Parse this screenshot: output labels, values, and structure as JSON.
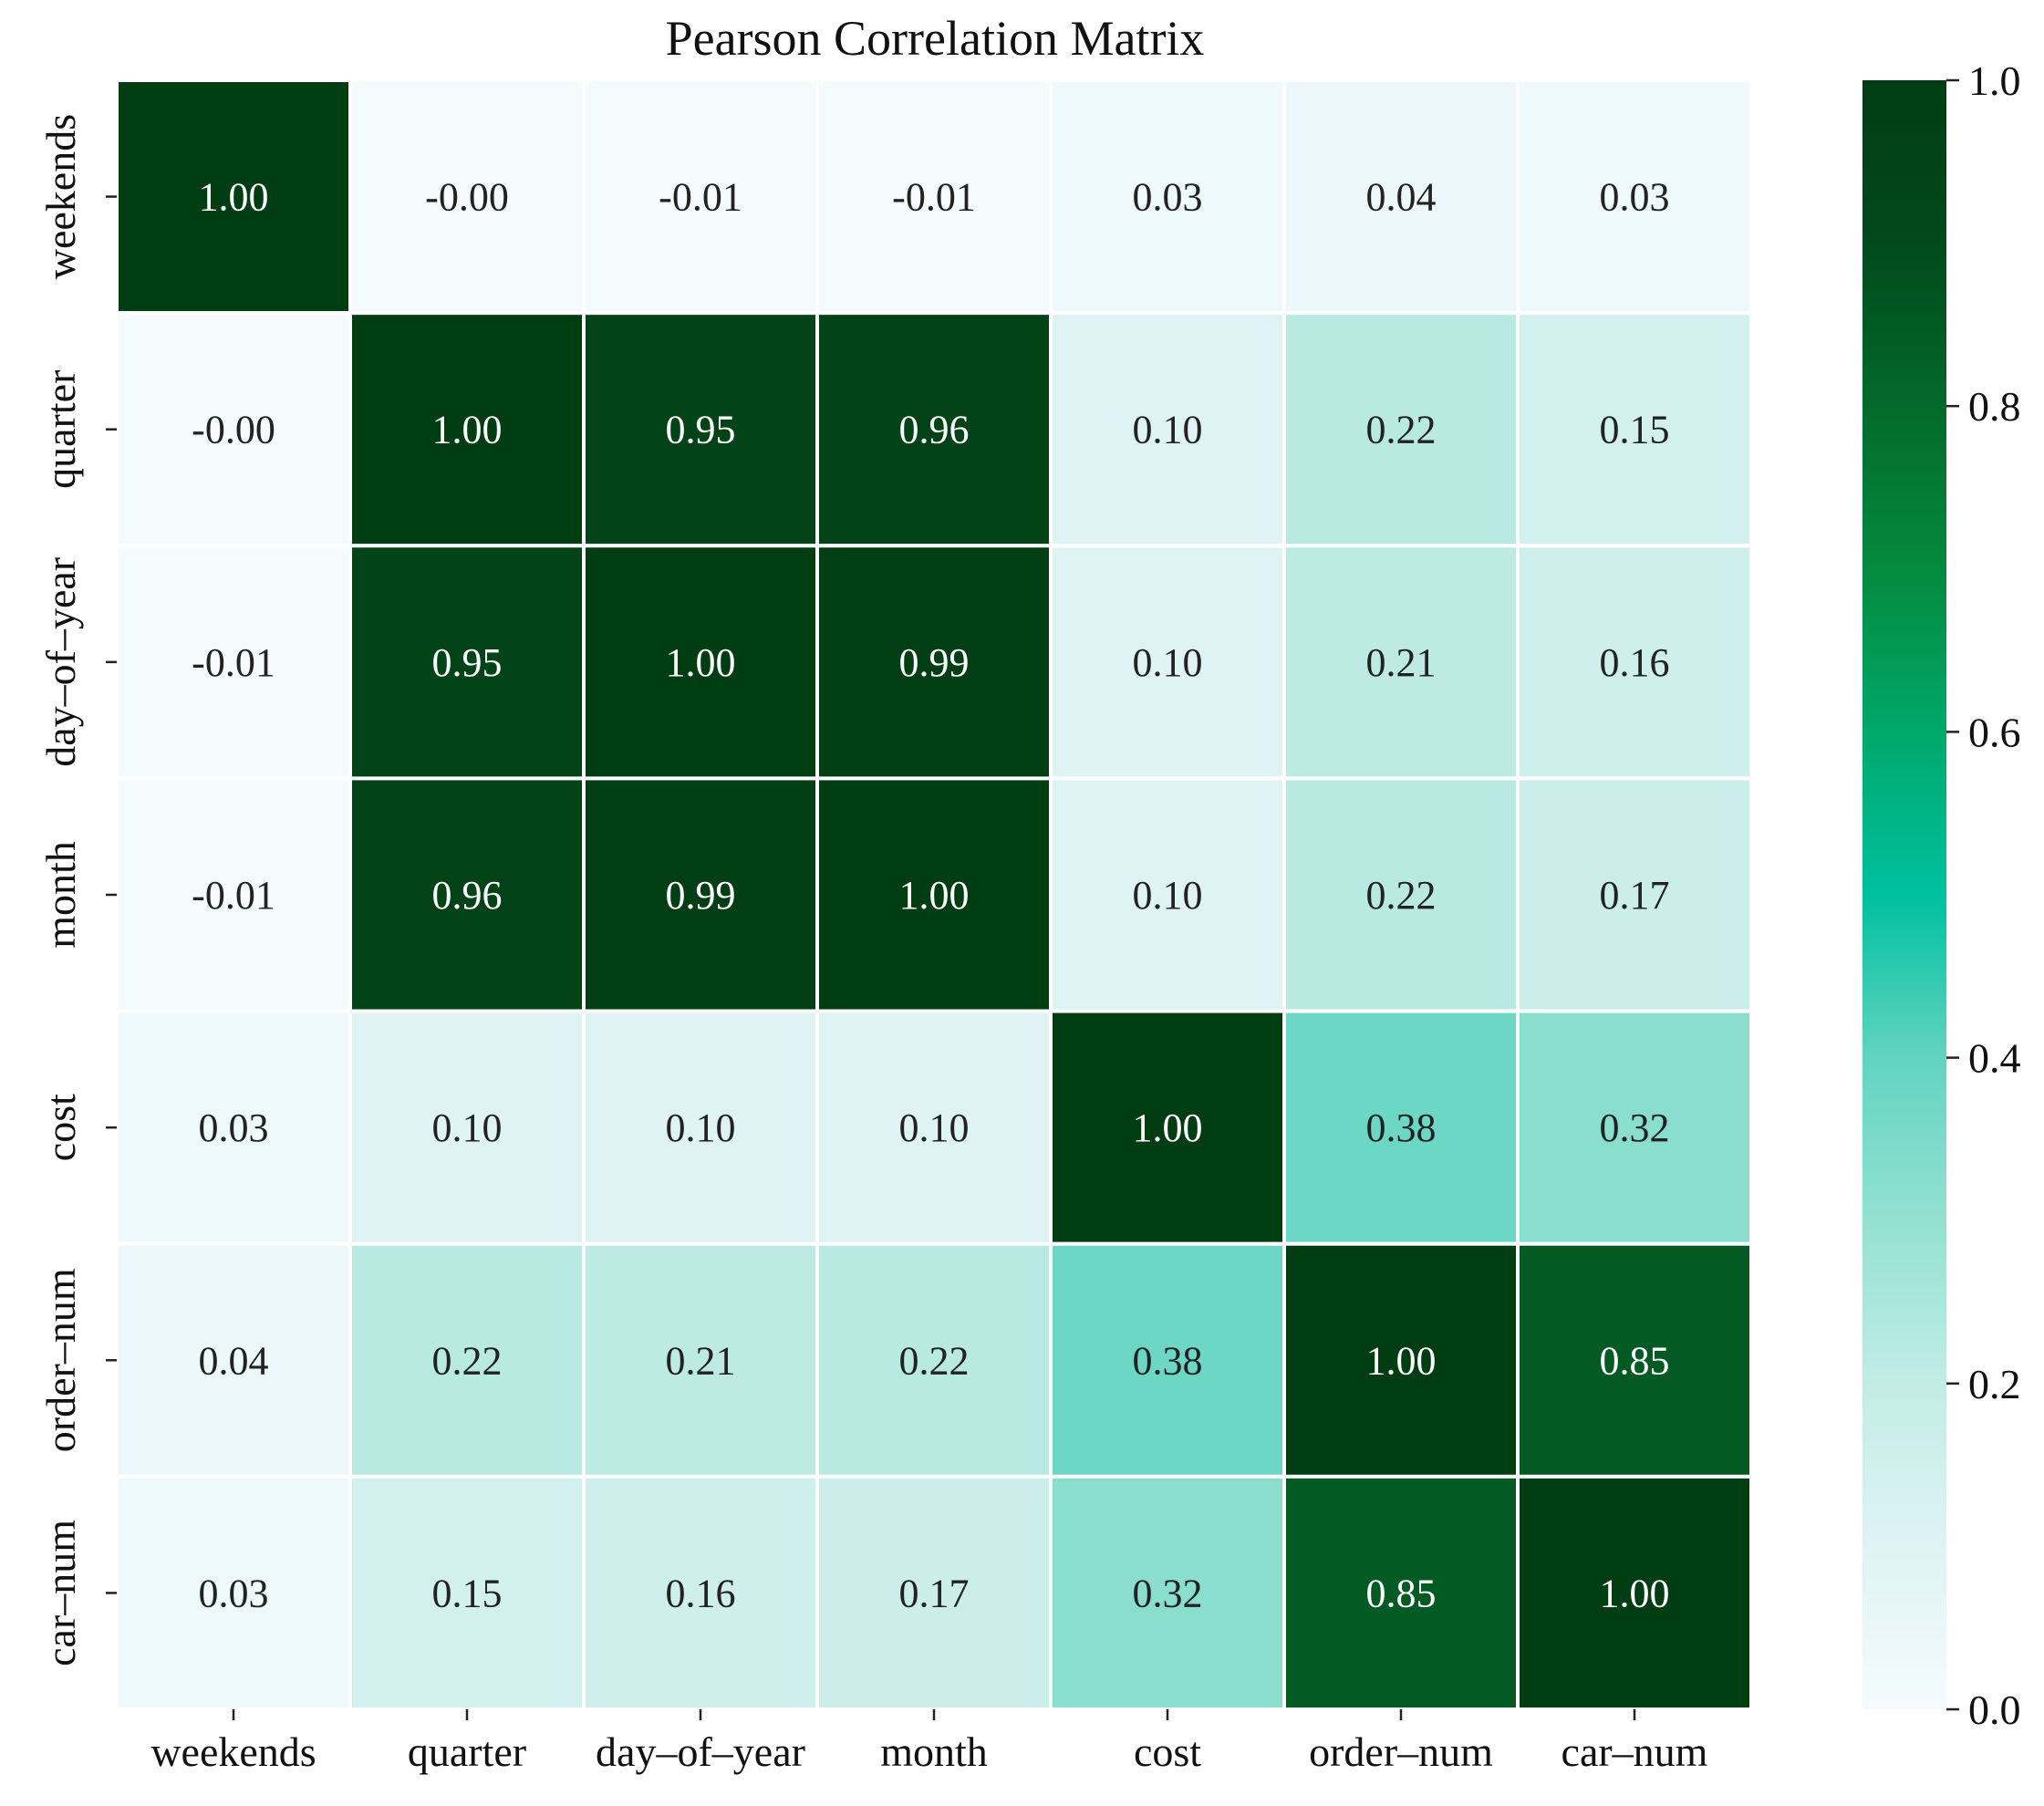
{
  "chart_data": {
    "type": "heatmap",
    "title": "Pearson Correlation Matrix",
    "x_labels": [
      "weekends",
      "quarter",
      "day–of–year",
      "month",
      "cost",
      "order–num",
      "car–num"
    ],
    "y_labels": [
      "weekends",
      "quarter",
      "day–of–year",
      "month",
      "cost",
      "order–num",
      "car–num"
    ],
    "values": [
      [
        1.0,
        -0.0,
        -0.01,
        -0.01,
        0.03,
        0.04,
        0.03
      ],
      [
        -0.0,
        1.0,
        0.95,
        0.96,
        0.1,
        0.22,
        0.15
      ],
      [
        -0.01,
        0.95,
        1.0,
        0.99,
        0.1,
        0.21,
        0.16
      ],
      [
        -0.01,
        0.96,
        0.99,
        1.0,
        0.1,
        0.22,
        0.17
      ],
      [
        0.03,
        0.1,
        0.1,
        0.1,
        1.0,
        0.38,
        0.32
      ],
      [
        0.04,
        0.22,
        0.21,
        0.22,
        0.38,
        1.0,
        0.85
      ],
      [
        0.03,
        0.15,
        0.16,
        0.17,
        0.32,
        0.85,
        1.0
      ]
    ],
    "value_labels": [
      [
        "1.00",
        "-0.00",
        "-0.01",
        "-0.01",
        "0.03",
        "0.04",
        "0.03"
      ],
      [
        "-0.00",
        "1.00",
        "0.95",
        "0.96",
        "0.10",
        "0.22",
        "0.15"
      ],
      [
        "-0.01",
        "0.95",
        "1.00",
        "0.99",
        "0.10",
        "0.21",
        "0.16"
      ],
      [
        "-0.01",
        "0.96",
        "0.99",
        "1.00",
        "0.10",
        "0.22",
        "0.17"
      ],
      [
        "0.03",
        "0.10",
        "0.10",
        "0.10",
        "1.00",
        "0.38",
        "0.32"
      ],
      [
        "0.04",
        "0.22",
        "0.21",
        "0.22",
        "0.38",
        "1.00",
        "0.85"
      ],
      [
        "0.03",
        "0.15",
        "0.16",
        "0.17",
        "0.32",
        "0.85",
        "1.00"
      ]
    ],
    "colorbar": {
      "range": [
        0.0,
        1.0
      ],
      "ticks": [
        0.0,
        0.2,
        0.4,
        0.6,
        0.8,
        1.0
      ],
      "tick_labels": [
        "0.0",
        "0.2",
        "0.4",
        "0.6",
        "0.8",
        "1.0"
      ],
      "colors": [
        "#f5fbfd",
        "#dff3f5",
        "#c2ece6",
        "#93e1d2",
        "#62d4c0",
        "#00c0a0",
        "#00a86a",
        "#058a3e",
        "#036a2c",
        "#024a1a",
        "#013d13"
      ]
    },
    "colormap": "white-teal-green",
    "annot_dark_text": "#222222",
    "annot_light_text": "#ffffff",
    "grid": false
  }
}
